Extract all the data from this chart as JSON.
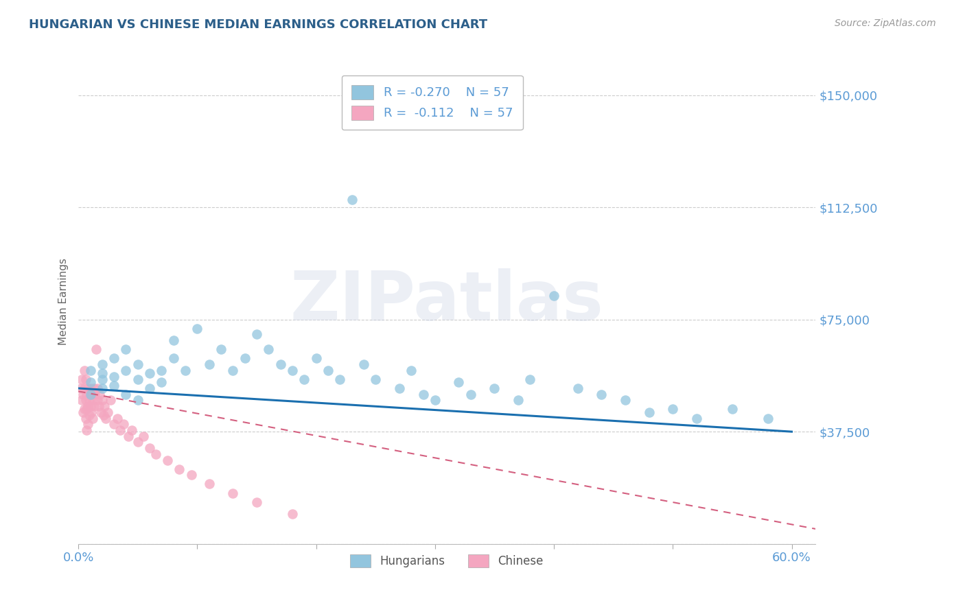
{
  "title": "HUNGARIAN VS CHINESE MEDIAN EARNINGS CORRELATION CHART",
  "source": "Source: ZipAtlas.com",
  "ylabel": "Median Earnings",
  "xlim": [
    0.0,
    0.62
  ],
  "ylim": [
    0,
    162000
  ],
  "yticks": [
    0,
    37500,
    75000,
    112500,
    150000
  ],
  "ytick_labels": [
    "",
    "$37,500",
    "$75,000",
    "$112,500",
    "$150,000"
  ],
  "xticks": [
    0.0,
    0.1,
    0.2,
    0.3,
    0.4,
    0.5,
    0.6
  ],
  "legend_r_hungarian": "R = -0.270",
  "legend_r_chinese": "R =  -0.112",
  "legend_n": "N = 57",
  "color_hungarian": "#92c5de",
  "color_chinese": "#f4a6c0",
  "color_trend_hungarian": "#1a6faf",
  "color_trend_chinese": "#d46080",
  "background_color": "#ffffff",
  "title_color": "#2c5f8a",
  "tick_label_color": "#5b9bd5",
  "watermark": "ZIPatlas",
  "hungarian_x": [
    0.01,
    0.01,
    0.01,
    0.02,
    0.02,
    0.02,
    0.02,
    0.03,
    0.03,
    0.03,
    0.04,
    0.04,
    0.04,
    0.05,
    0.05,
    0.05,
    0.06,
    0.06,
    0.07,
    0.07,
    0.08,
    0.08,
    0.09,
    0.1,
    0.11,
    0.12,
    0.13,
    0.14,
    0.15,
    0.16,
    0.17,
    0.18,
    0.19,
    0.2,
    0.21,
    0.22,
    0.23,
    0.24,
    0.25,
    0.27,
    0.28,
    0.29,
    0.3,
    0.32,
    0.33,
    0.35,
    0.37,
    0.38,
    0.4,
    0.42,
    0.44,
    0.46,
    0.48,
    0.5,
    0.52,
    0.55,
    0.58
  ],
  "hungarian_y": [
    54000,
    58000,
    50000,
    55000,
    60000,
    52000,
    57000,
    53000,
    62000,
    56000,
    50000,
    58000,
    65000,
    55000,
    48000,
    60000,
    57000,
    52000,
    58000,
    54000,
    62000,
    68000,
    58000,
    72000,
    60000,
    65000,
    58000,
    62000,
    70000,
    65000,
    60000,
    58000,
    55000,
    62000,
    58000,
    55000,
    115000,
    60000,
    55000,
    52000,
    58000,
    50000,
    48000,
    54000,
    50000,
    52000,
    48000,
    55000,
    83000,
    52000,
    50000,
    48000,
    44000,
    45000,
    42000,
    45000,
    42000
  ],
  "chinese_x": [
    0.002,
    0.003,
    0.003,
    0.004,
    0.004,
    0.005,
    0.005,
    0.005,
    0.006,
    0.006,
    0.006,
    0.007,
    0.007,
    0.007,
    0.008,
    0.008,
    0.008,
    0.009,
    0.009,
    0.01,
    0.01,
    0.011,
    0.011,
    0.012,
    0.012,
    0.013,
    0.013,
    0.014,
    0.015,
    0.016,
    0.016,
    0.017,
    0.018,
    0.019,
    0.02,
    0.021,
    0.022,
    0.023,
    0.025,
    0.027,
    0.03,
    0.033,
    0.035,
    0.038,
    0.042,
    0.045,
    0.05,
    0.055,
    0.06,
    0.065,
    0.075,
    0.085,
    0.095,
    0.11,
    0.13,
    0.15,
    0.18
  ],
  "chinese_y": [
    52000,
    48000,
    55000,
    50000,
    44000,
    58000,
    45000,
    52000,
    48000,
    55000,
    42000,
    50000,
    45000,
    38000,
    52000,
    46000,
    40000,
    48000,
    43000,
    52000,
    46000,
    50000,
    44000,
    48000,
    42000,
    52000,
    46000,
    50000,
    65000,
    52000,
    48000,
    46000,
    50000,
    44000,
    48000,
    43000,
    46000,
    42000,
    44000,
    48000,
    40000,
    42000,
    38000,
    40000,
    36000,
    38000,
    34000,
    36000,
    32000,
    30000,
    28000,
    25000,
    23000,
    20000,
    17000,
    14000,
    10000
  ],
  "grid_color": "#cccccc",
  "grid_linestyle": "--",
  "hungarian_trend_x": [
    0.0,
    0.6
  ],
  "hungarian_trend_y": [
    52000,
    37500
  ],
  "chinese_trend_x": [
    0.0,
    0.62
  ],
  "chinese_trend_y": [
    51000,
    5000
  ]
}
